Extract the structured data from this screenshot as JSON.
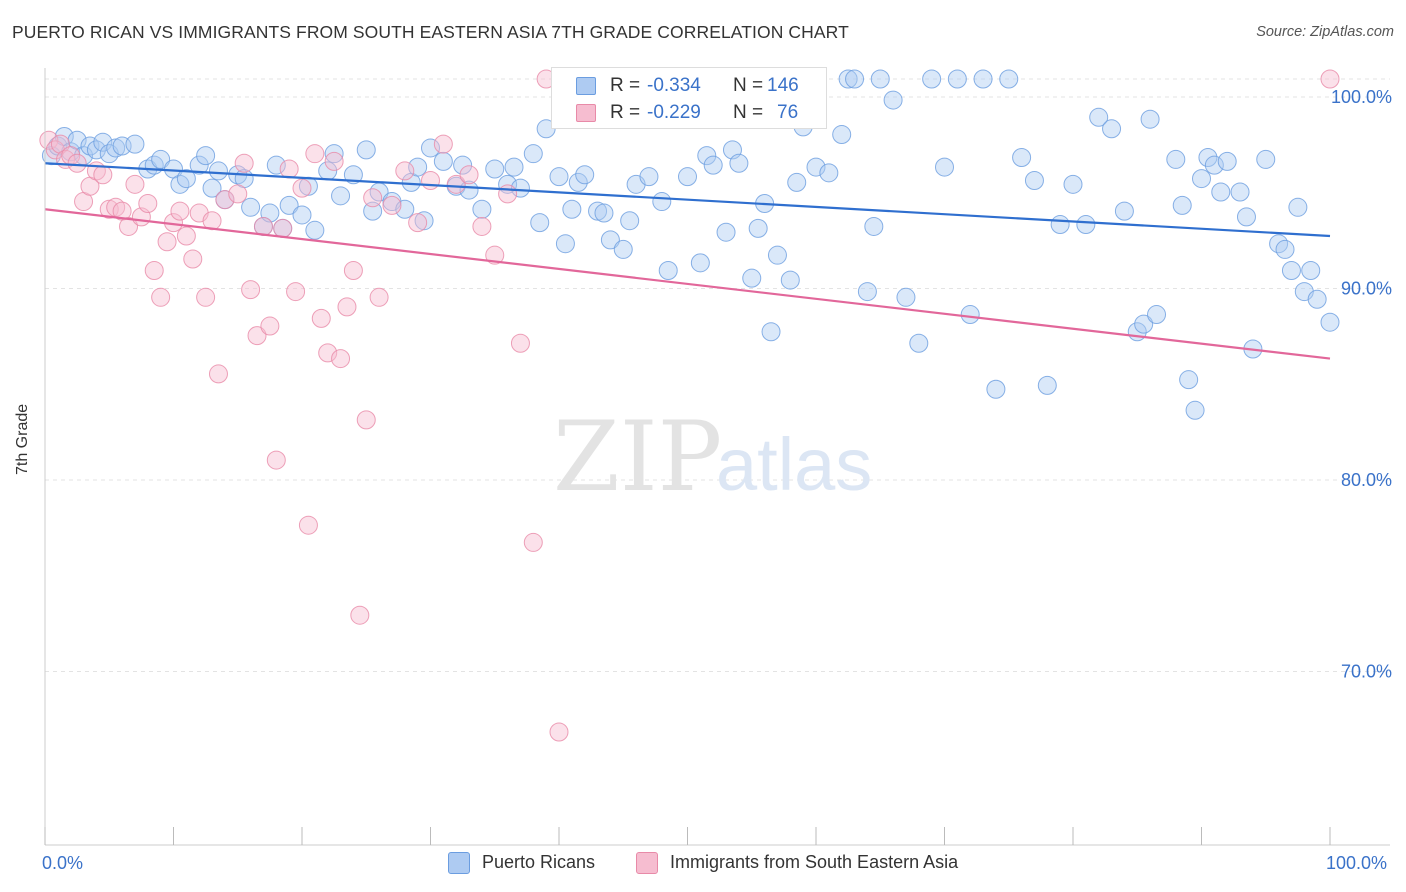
{
  "title": "PUERTO RICAN VS IMMIGRANTS FROM SOUTH EASTERN ASIA 7TH GRADE CORRELATION CHART",
  "source": "Source: ZipAtlas.com",
  "watermark": "ZIPatlas",
  "legend_top": {
    "r_label": "R =",
    "n_label": "N =",
    "series1": {
      "r": "-0.334",
      "n": "146"
    },
    "series2": {
      "r": "-0.229",
      "n": "76"
    }
  },
  "chart_data": {
    "type": "scatter",
    "title": "PUERTO RICAN VS IMMIGRANTS FROM SOUTH EASTERN ASIA 7TH GRADE CORRELATION CHART",
    "xlabel": "",
    "ylabel": "7th Grade",
    "xlim": [
      0,
      100
    ],
    "ylim": [
      60,
      102
    ],
    "x_tick_labels": [
      "0.0%",
      "100.0%"
    ],
    "y_ticks": [
      100,
      90,
      80,
      70
    ],
    "y_tick_labels": [
      "100.0%",
      "90.0%",
      "80.0%",
      "70.0%"
    ],
    "grid": true,
    "legend_position": "bottom",
    "series": [
      {
        "name": "Puerto Ricans",
        "color": "#6b9de0",
        "fill": "#aecbf2",
        "r": -0.334,
        "n": 146,
        "trend": {
          "x": [
            0,
            100
          ],
          "y": [
            95.6,
            91.8
          ]
        },
        "points": [
          [
            0.5,
            96
          ],
          [
            1,
            96.5
          ],
          [
            1.5,
            97
          ],
          [
            2,
            96.2
          ],
          [
            2.5,
            96.8
          ],
          [
            3,
            96
          ],
          [
            3.5,
            96.5
          ],
          [
            4,
            96.3
          ],
          [
            4.5,
            96.7
          ],
          [
            5,
            96.1
          ],
          [
            5.5,
            96.4
          ],
          [
            6,
            96.5
          ],
          [
            7,
            96.6
          ],
          [
            8,
            95.3
          ],
          [
            8.5,
            95.5
          ],
          [
            9,
            95.8
          ],
          [
            10,
            95.3
          ],
          [
            10.5,
            94.5
          ],
          [
            11,
            94.8
          ],
          [
            12,
            95.5
          ],
          [
            12.5,
            96
          ],
          [
            13,
            94.3
          ],
          [
            13.5,
            95.2
          ],
          [
            14,
            93.7
          ],
          [
            15,
            95
          ],
          [
            15.5,
            94.8
          ],
          [
            16,
            93.3
          ],
          [
            17,
            92.3
          ],
          [
            17.5,
            93
          ],
          [
            18,
            95.5
          ],
          [
            18.5,
            92.2
          ],
          [
            19,
            93.4
          ],
          [
            20,
            92.9
          ],
          [
            20.5,
            94.4
          ],
          [
            21,
            92.1
          ],
          [
            22,
            95.2
          ],
          [
            22.5,
            96.1
          ],
          [
            23,
            93.9
          ],
          [
            24,
            95
          ],
          [
            25,
            96.3
          ],
          [
            25.5,
            93.1
          ],
          [
            26,
            94.1
          ],
          [
            27,
            93.6
          ],
          [
            28,
            93.2
          ],
          [
            28.5,
            94.6
          ],
          [
            29,
            95.4
          ],
          [
            29.5,
            92.6
          ],
          [
            30,
            96.4
          ],
          [
            31,
            95.7
          ],
          [
            32,
            94.4
          ],
          [
            32.5,
            95.5
          ],
          [
            33,
            94.2
          ],
          [
            34,
            93.2
          ],
          [
            35,
            95.3
          ],
          [
            36,
            94.5
          ],
          [
            36.5,
            95.4
          ],
          [
            37,
            94.3
          ],
          [
            38,
            96.1
          ],
          [
            38.5,
            92.5
          ],
          [
            39,
            97.4
          ],
          [
            40,
            94.9
          ],
          [
            40.5,
            91.4
          ],
          [
            41,
            93.2
          ],
          [
            41.5,
            94.6
          ],
          [
            42,
            95
          ],
          [
            43,
            93.1
          ],
          [
            43.5,
            93
          ],
          [
            44,
            91.6
          ],
          [
            45,
            91.1
          ],
          [
            45.5,
            92.6
          ],
          [
            46,
            94.5
          ],
          [
            47,
            94.9
          ],
          [
            47.5,
            100
          ],
          [
            48,
            93.6
          ],
          [
            48.5,
            90
          ],
          [
            49,
            98.1
          ],
          [
            50,
            94.9
          ],
          [
            51,
            90.4
          ],
          [
            51.5,
            96
          ],
          [
            52,
            95.5
          ],
          [
            53,
            92
          ],
          [
            53.5,
            96.3
          ],
          [
            54,
            95.6
          ],
          [
            55,
            89.6
          ],
          [
            55.5,
            92.2
          ],
          [
            56,
            93.5
          ],
          [
            56.5,
            86.8
          ],
          [
            57,
            90.8
          ],
          [
            58,
            89.5
          ],
          [
            58.5,
            94.6
          ],
          [
            59,
            97.5
          ],
          [
            60,
            95.4
          ],
          [
            61,
            95.1
          ],
          [
            62,
            97.1
          ],
          [
            62.5,
            100
          ],
          [
            63,
            100
          ],
          [
            64,
            88.9
          ],
          [
            64.5,
            92.3
          ],
          [
            65,
            100
          ],
          [
            66,
            98.9
          ],
          [
            67,
            88.6
          ],
          [
            68,
            86.2
          ],
          [
            69,
            100
          ],
          [
            70,
            95.4
          ],
          [
            71,
            100
          ],
          [
            72,
            87.7
          ],
          [
            73,
            100
          ],
          [
            74,
            83.8
          ],
          [
            75,
            100
          ],
          [
            76,
            95.9
          ],
          [
            77,
            94.7
          ],
          [
            78,
            84
          ],
          [
            79,
            92.4
          ],
          [
            80,
            94.5
          ],
          [
            81,
            92.4
          ],
          [
            82,
            98
          ],
          [
            83,
            97.4
          ],
          [
            84,
            93.1
          ],
          [
            85,
            86.8
          ],
          [
            85.5,
            87.2
          ],
          [
            86,
            97.9
          ],
          [
            86.5,
            87.7
          ],
          [
            88,
            95.8
          ],
          [
            88.5,
            93.4
          ],
          [
            89,
            84.3
          ],
          [
            89.5,
            82.7
          ],
          [
            90,
            94.8
          ],
          [
            90.5,
            95.9
          ],
          [
            91,
            95.5
          ],
          [
            91.5,
            94.1
          ],
          [
            92,
            95.7
          ],
          [
            93,
            94.1
          ],
          [
            93.5,
            92.8
          ],
          [
            94,
            85.9
          ],
          [
            95,
            95.8
          ],
          [
            96,
            91.4
          ],
          [
            96.5,
            91.1
          ],
          [
            97,
            90
          ],
          [
            97.5,
            93.3
          ],
          [
            98,
            88.9
          ],
          [
            98.5,
            90
          ],
          [
            99,
            88.5
          ],
          [
            100,
            87.3
          ]
        ]
      },
      {
        "name": "Immigrants from South Eastern Asia",
        "color": "#e88aa8",
        "fill": "#f6bdd0",
        "r": -0.229,
        "n": 76,
        "trend": {
          "x": [
            0,
            100
          ],
          "y": [
            93.2,
            85.4
          ]
        },
        "points": [
          [
            0.3,
            96.8
          ],
          [
            0.8,
            96.3
          ],
          [
            1.2,
            96.6
          ],
          [
            1.6,
            95.8
          ],
          [
            2,
            96
          ],
          [
            2.5,
            95.6
          ],
          [
            3,
            93.6
          ],
          [
            3.5,
            94.4
          ],
          [
            4,
            95.2
          ],
          [
            4.5,
            95
          ],
          [
            5,
            93.2
          ],
          [
            5.5,
            93.3
          ],
          [
            6,
            93.1
          ],
          [
            6.5,
            92.3
          ],
          [
            7,
            94.5
          ],
          [
            7.5,
            92.8
          ],
          [
            8,
            93.5
          ],
          [
            8.5,
            90
          ],
          [
            9,
            88.6
          ],
          [
            9.5,
            91.5
          ],
          [
            10,
            92.5
          ],
          [
            10.5,
            93.1
          ],
          [
            11,
            91.8
          ],
          [
            11.5,
            90.6
          ],
          [
            12,
            93
          ],
          [
            12.5,
            88.6
          ],
          [
            13,
            92.6
          ],
          [
            13.5,
            84.6
          ],
          [
            14,
            93.7
          ],
          [
            15,
            94
          ],
          [
            15.5,
            95.6
          ],
          [
            16,
            89
          ],
          [
            16.5,
            86.6
          ],
          [
            17,
            92.3
          ],
          [
            17.5,
            87.1
          ],
          [
            18,
            80.1
          ],
          [
            18.5,
            92.2
          ],
          [
            19,
            95.3
          ],
          [
            19.5,
            88.9
          ],
          [
            20,
            94.3
          ],
          [
            20.5,
            76.7
          ],
          [
            21,
            96.1
          ],
          [
            21.5,
            87.5
          ],
          [
            22,
            85.7
          ],
          [
            22.5,
            95.7
          ],
          [
            23,
            85.4
          ],
          [
            23.5,
            88.1
          ],
          [
            24,
            90
          ],
          [
            24.5,
            72
          ],
          [
            25,
            82.2
          ],
          [
            25.5,
            93.8
          ],
          [
            26,
            88.6
          ],
          [
            27,
            93.4
          ],
          [
            28,
            95.2
          ],
          [
            29,
            92.5
          ],
          [
            30,
            94.7
          ],
          [
            31,
            96.6
          ],
          [
            32,
            94.5
          ],
          [
            33,
            95
          ],
          [
            34,
            92.3
          ],
          [
            35,
            90.8
          ],
          [
            36,
            94
          ],
          [
            37,
            86.2
          ],
          [
            38,
            75.8
          ],
          [
            39,
            100
          ],
          [
            40,
            65.9
          ],
          [
            41,
            100
          ],
          [
            100,
            100
          ]
        ]
      }
    ]
  },
  "legend_bottom": {
    "series1": "Puerto Ricans",
    "series2": "Immigrants from South Eastern Asia"
  }
}
